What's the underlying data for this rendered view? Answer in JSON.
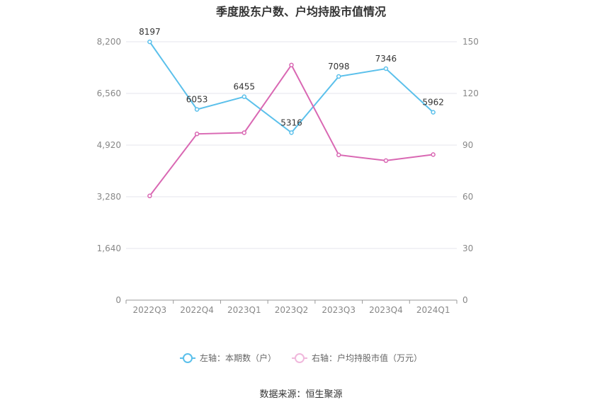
{
  "chart_data": {
    "type": "line",
    "title": "季度股东户数、户均持股市值情况",
    "categories": [
      "2022Q3",
      "2022Q4",
      "2023Q1",
      "2023Q2",
      "2023Q3",
      "2023Q4",
      "2024Q1"
    ],
    "y_left": {
      "ticks": [
        "0",
        "1,640",
        "3,280",
        "4,920",
        "6,560",
        "8,200"
      ],
      "min": 0,
      "max": 8200
    },
    "y_right": {
      "ticks": [
        "0",
        "30",
        "60",
        "90",
        "120",
        "150"
      ],
      "min": 0,
      "max": 150
    },
    "series": [
      {
        "name": "左轴：本期数（户）",
        "axis": "left",
        "color": "#5bc0eb",
        "values": [
          8197,
          6053,
          6455,
          5316,
          7098,
          7346,
          5962
        ],
        "labels": [
          "8197",
          "6053",
          "6455",
          "5316",
          "7098",
          "7346",
          "5962"
        ]
      },
      {
        "name": "右轴：户均持股市值（万元）",
        "axis": "right",
        "color": "#d968b3",
        "values": [
          60.5,
          96.5,
          97.2,
          136.5,
          84.3,
          81.0,
          84.5
        ]
      }
    ],
    "legend_position": "bottom",
    "grid": true
  },
  "legend": {
    "left_label": "左轴：本期数（户）",
    "right_label": "右轴：户均持股市值（万元）"
  },
  "source": "数据来源：恒生聚源"
}
